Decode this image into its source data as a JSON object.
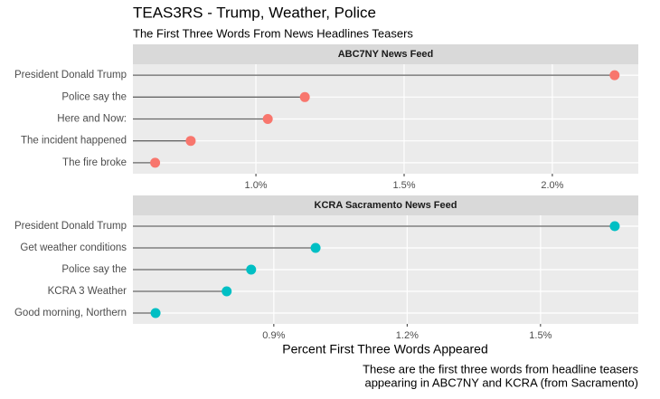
{
  "title": "TEAS3RS - Trump, Weather, Police",
  "subtitle": "The First Three Words From News Headlines Teasers",
  "x_label": "Percent First Three Words Appeared",
  "caption": [
    "These are the first three words from headline teasers",
    "appearing in ABC7NY and KCRA (from Sacramento)"
  ],
  "chart_data": [
    {
      "type": "lollipop",
      "title": "ABC7NY News Feed",
      "categories": [
        "President Donald Trump",
        "Police say the",
        "Here and Now:",
        "The incident happened",
        "The fire broke"
      ],
      "values": [
        2.21,
        1.165,
        1.04,
        0.78,
        0.66
      ],
      "color": "#f8766d",
      "xlim": [
        0.585,
        2.29
      ],
      "xticks": [
        {
          "value": 1.0,
          "label": "1.0%"
        },
        {
          "value": 1.5,
          "label": "1.5%"
        },
        {
          "value": 2.0,
          "label": "2.0%"
        }
      ],
      "grid": true
    },
    {
      "type": "lollipop",
      "title": "KCRA Sacramento News Feed",
      "categories": [
        "President Donald Trump",
        "Get weather conditions",
        "Police say the",
        "KCRA 3 Weather",
        "Good morning, Northern"
      ],
      "values": [
        1.667,
        0.994,
        0.849,
        0.794,
        0.634
      ],
      "color": "#00bfc4",
      "xlim": [
        0.583,
        1.72
      ],
      "xticks": [
        {
          "value": 0.9,
          "label": "0.9%"
        },
        {
          "value": 1.2,
          "label": "1.2%"
        },
        {
          "value": 1.5,
          "label": "1.5%"
        }
      ],
      "grid": true
    }
  ]
}
